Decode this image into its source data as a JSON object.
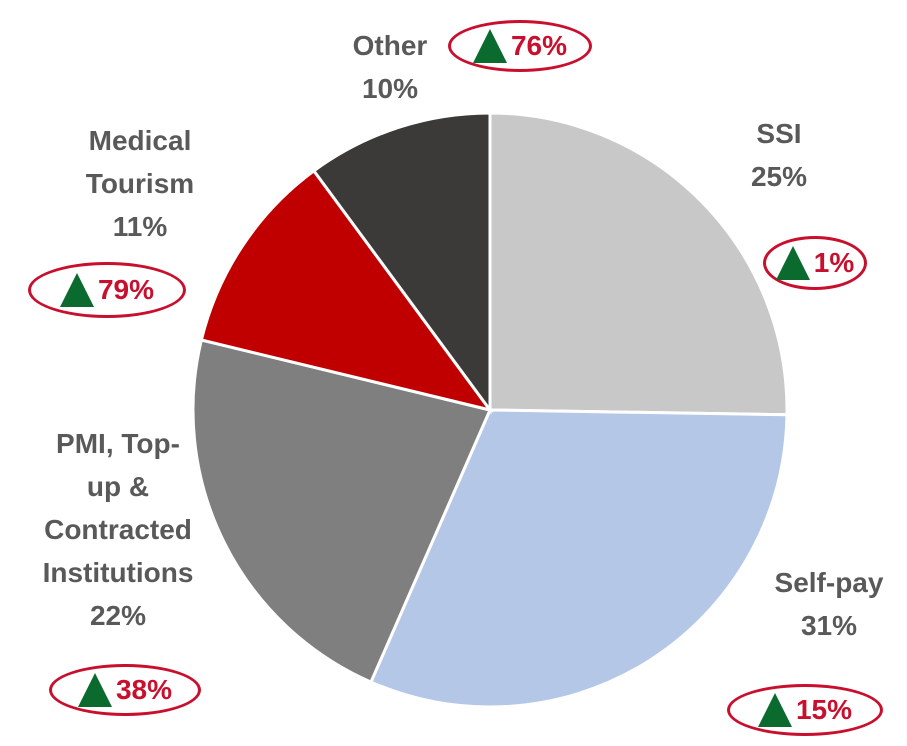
{
  "chart_data": {
    "type": "pie",
    "categories": [
      "SSI",
      "Self-pay",
      "PMI, Top-up & Contracted Institutions",
      "Medical Tourism",
      "Other"
    ],
    "values": [
      25,
      31,
      22,
      11,
      10
    ],
    "value_labels": [
      "25%",
      "31%",
      "22%",
      "11%",
      "10%"
    ],
    "growth_labels": [
      "1%",
      "15%",
      "38%",
      "79%",
      "76%"
    ],
    "colors": [
      "#c8c8c8",
      "#b4c7e7",
      "#7f7f7f",
      "#c00000",
      "#3b3a39"
    ]
  }
}
